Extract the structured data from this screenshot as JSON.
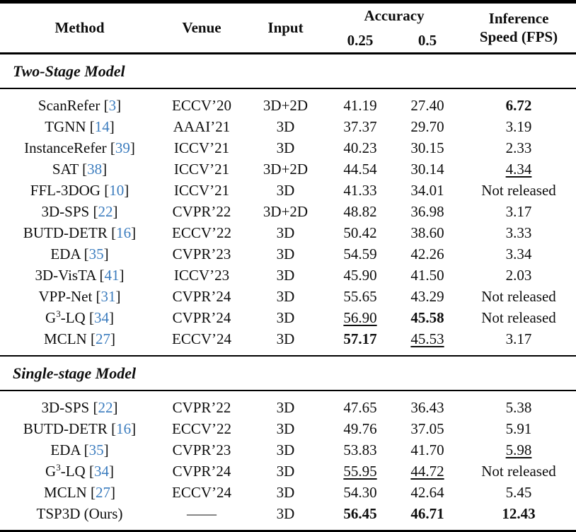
{
  "table": {
    "header": {
      "method": "Method",
      "venue": "Venue",
      "input": "Input",
      "accuracy": "Accuracy",
      "acc_025": "0.25",
      "acc_05": "0.5",
      "inference_line1": "Inference",
      "inference_line2": "Speed (FPS)"
    },
    "cite_color": "#3b7cbe",
    "sections": [
      {
        "title": "Two-Stage Model",
        "rows": [
          {
            "m": "ScanRefer",
            "c": "3",
            "v": "ECCV’20",
            "i": "3D+2D",
            "a25": "41.19",
            "s25": "",
            "a50": "27.40",
            "s50": "",
            "fps": "6.72",
            "sf": "b"
          },
          {
            "m": "TGNN",
            "c": "14",
            "v": "AAAI’21",
            "i": "3D",
            "a25": "37.37",
            "s25": "",
            "a50": "29.70",
            "s50": "",
            "fps": "3.19",
            "sf": ""
          },
          {
            "m": "InstanceRefer",
            "c": "39",
            "v": "ICCV’21",
            "i": "3D",
            "a25": "40.23",
            "s25": "",
            "a50": "30.15",
            "s50": "",
            "fps": "2.33",
            "sf": ""
          },
          {
            "m": "SAT",
            "c": "38",
            "v": "ICCV’21",
            "i": "3D+2D",
            "a25": "44.54",
            "s25": "",
            "a50": "30.14",
            "s50": "",
            "fps": "4.34",
            "sf": "u"
          },
          {
            "m": "FFL-3DOG",
            "c": "10",
            "v": "ICCV’21",
            "i": "3D",
            "a25": "41.33",
            "s25": "",
            "a50": "34.01",
            "s50": "",
            "fps": "Not released",
            "sf": ""
          },
          {
            "m": "3D-SPS",
            "c": "22",
            "v": "CVPR’22",
            "i": "3D+2D",
            "a25": "48.82",
            "s25": "",
            "a50": "36.98",
            "s50": "",
            "fps": "3.17",
            "sf": ""
          },
          {
            "m": "BUTD-DETR",
            "c": "16",
            "v": "ECCV’22",
            "i": "3D",
            "a25": "50.42",
            "s25": "",
            "a50": "38.60",
            "s50": "",
            "fps": "3.33",
            "sf": ""
          },
          {
            "m": "EDA",
            "c": "35",
            "v": "CVPR’23",
            "i": "3D",
            "a25": "54.59",
            "s25": "",
            "a50": "42.26",
            "s50": "",
            "fps": "3.34",
            "sf": ""
          },
          {
            "m": "3D-VisTA",
            "c": "41",
            "v": "ICCV’23",
            "i": "3D",
            "a25": "45.90",
            "s25": "",
            "a50": "41.50",
            "s50": "",
            "fps": "2.03",
            "sf": ""
          },
          {
            "m": "VPP-Net",
            "c": "31",
            "v": "CVPR’24",
            "i": "3D",
            "a25": "55.65",
            "s25": "",
            "a50": "43.29",
            "s50": "",
            "fps": "Not released",
            "sf": ""
          },
          {
            "m": "G^3-LQ",
            "c": "34",
            "v": "CVPR’24",
            "i": "3D",
            "a25": "56.90",
            "s25": "u",
            "a50": "45.58",
            "s50": "b",
            "fps": "Not released",
            "sf": ""
          },
          {
            "m": "MCLN",
            "c": "27",
            "v": "ECCV’24",
            "i": "3D",
            "a25": "57.17",
            "s25": "b",
            "a50": "45.53",
            "s50": "u",
            "fps": "3.17",
            "sf": ""
          }
        ]
      },
      {
        "title": "Single-stage Model",
        "rows": [
          {
            "m": "3D-SPS",
            "c": "22",
            "v": "CVPR’22",
            "i": "3D",
            "a25": "47.65",
            "s25": "",
            "a50": "36.43",
            "s50": "",
            "fps": "5.38",
            "sf": ""
          },
          {
            "m": "BUTD-DETR",
            "c": "16",
            "v": "ECCV’22",
            "i": "3D",
            "a25": "49.76",
            "s25": "",
            "a50": "37.05",
            "s50": "",
            "fps": "5.91",
            "sf": ""
          },
          {
            "m": "EDA",
            "c": "35",
            "v": "CVPR’23",
            "i": "3D",
            "a25": "53.83",
            "s25": "",
            "a50": "41.70",
            "s50": "",
            "fps": "5.98",
            "sf": "u"
          },
          {
            "m": "G^3-LQ",
            "c": "34",
            "v": "CVPR’24",
            "i": "3D",
            "a25": "55.95",
            "s25": "u",
            "a50": "44.72",
            "s50": "u",
            "fps": "Not released",
            "sf": ""
          },
          {
            "m": "MCLN",
            "c": "27",
            "v": "ECCV’24",
            "i": "3D",
            "a25": "54.30",
            "s25": "",
            "a50": "42.64",
            "s50": "",
            "fps": "5.45",
            "sf": ""
          },
          {
            "m": "TSP3D (Ours)",
            "c": "",
            "v": "——",
            "i": "3D",
            "a25": "56.45",
            "s25": "b",
            "a50": "46.71",
            "s50": "b",
            "fps": "12.43",
            "sf": "b"
          }
        ]
      }
    ]
  }
}
